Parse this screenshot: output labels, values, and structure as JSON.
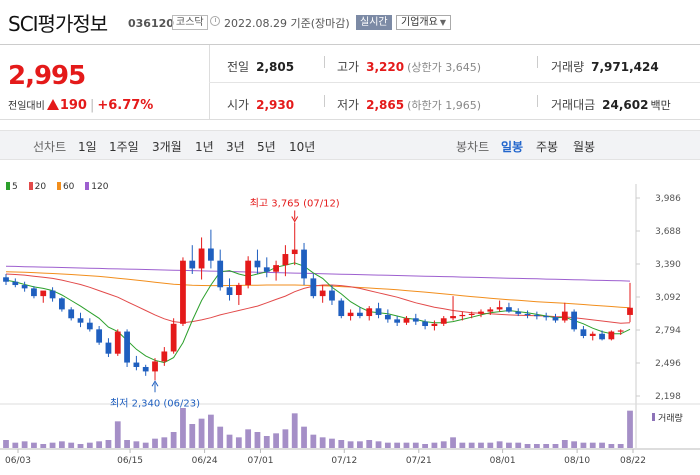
{
  "header": {
    "name": "SCI평가정보",
    "code": "036120",
    "market": "코스닥",
    "timestamp": "2022.08.29 기준(장마감)",
    "realtime_label": "실시간",
    "info_button": "기업개요"
  },
  "summary": {
    "price": "2,995",
    "change_label": "전일대비",
    "change": "190",
    "change_pct": "+6.77%",
    "prev_close_label": "전일",
    "prev_close": "2,805",
    "open_label": "시가",
    "open": "2,930",
    "high_label": "고가",
    "high": "3,220",
    "upper_limit": "(상한가 3,645)",
    "low_label": "저가",
    "low": "2,865",
    "lower_limit": "(하한가 1,965)",
    "volume_label": "거래량",
    "volume": "7,971,424",
    "amount_label": "거래대금",
    "amount": "24,602",
    "amount_unit": "백만"
  },
  "toolbar": {
    "line_chart_label": "선차트",
    "periods": [
      "1일",
      "1주일",
      "3개월",
      "1년",
      "3년",
      "5년",
      "10년"
    ],
    "candle_chart_label": "봉차트",
    "candles": [
      "일봉",
      "주봉",
      "월봉"
    ],
    "active_candle": "일봉"
  },
  "chart_data": {
    "type": "candlestick",
    "legend": [
      {
        "name": "5",
        "color": "#2ca02c"
      },
      {
        "name": "20",
        "color": "#e24a4a"
      },
      {
        "name": "60",
        "color": "#f28e1c"
      },
      {
        "name": "120",
        "color": "#9d5fcf"
      }
    ],
    "ylim": [
      2198,
      3986
    ],
    "yticks": [
      "3,986",
      "3,688",
      "3,390",
      "3,092",
      "2,794",
      "2,496",
      "2,198"
    ],
    "xticks": [
      "06/03",
      "06/15",
      "06/24",
      "07/01",
      "07/12",
      "07/21",
      "08/01",
      "08/10",
      "08/22"
    ],
    "high_annotation": "최고 3,765 (07/12)",
    "low_annotation": "최저 2,340 (06/23)",
    "volume_label": "거래량",
    "ohlc": [
      [
        3270,
        3300,
        3200,
        3230
      ],
      [
        3230,
        3260,
        3180,
        3200
      ],
      [
        3200,
        3230,
        3140,
        3170
      ],
      [
        3170,
        3190,
        3080,
        3100
      ],
      [
        3100,
        3140,
        3040,
        3150
      ],
      [
        3150,
        3180,
        3050,
        3080
      ],
      [
        3080,
        3090,
        2960,
        2980
      ],
      [
        2980,
        3000,
        2880,
        2900
      ],
      [
        2900,
        2950,
        2820,
        2860
      ],
      [
        2860,
        2900,
        2780,
        2800
      ],
      [
        2800,
        2830,
        2660,
        2680
      ],
      [
        2680,
        2720,
        2550,
        2580
      ],
      [
        2580,
        2800,
        2560,
        2780
      ],
      [
        2780,
        2800,
        2460,
        2500
      ],
      [
        2500,
        2560,
        2430,
        2460
      ],
      [
        2460,
        2480,
        2380,
        2420
      ],
      [
        2420,
        2540,
        2340,
        2510
      ],
      [
        2510,
        2640,
        2470,
        2600
      ],
      [
        2600,
        2900,
        2580,
        2850
      ],
      [
        2850,
        3450,
        2830,
        3420
      ],
      [
        3420,
        3560,
        3300,
        3350
      ],
      [
        3350,
        3630,
        3250,
        3530
      ],
      [
        3530,
        3700,
        3350,
        3420
      ],
      [
        3420,
        3520,
        3150,
        3180
      ],
      [
        3180,
        3260,
        3060,
        3110
      ],
      [
        3110,
        3220,
        3020,
        3200
      ],
      [
        3200,
        3460,
        3170,
        3420
      ],
      [
        3420,
        3520,
        3300,
        3360
      ],
      [
        3360,
        3450,
        3270,
        3320
      ],
      [
        3320,
        3420,
        3240,
        3380
      ],
      [
        3380,
        3560,
        3280,
        3480
      ],
      [
        3480,
        3765,
        3380,
        3520
      ],
      [
        3520,
        3580,
        3200,
        3260
      ],
      [
        3260,
        3300,
        3080,
        3100
      ],
      [
        3100,
        3200,
        3040,
        3150
      ],
      [
        3150,
        3200,
        3020,
        3060
      ],
      [
        3060,
        3080,
        2900,
        2920
      ],
      [
        2920,
        2980,
        2880,
        2950
      ],
      [
        2950,
        3000,
        2900,
        2920
      ],
      [
        2920,
        3010,
        2880,
        2990
      ],
      [
        2990,
        3040,
        2900,
        2930
      ],
      [
        2930,
        2980,
        2860,
        2890
      ],
      [
        2890,
        2920,
        2830,
        2860
      ],
      [
        2860,
        2920,
        2840,
        2900
      ],
      [
        2900,
        2940,
        2840,
        2870
      ],
      [
        2870,
        2890,
        2800,
        2830
      ],
      [
        2830,
        2880,
        2790,
        2850
      ],
      [
        2850,
        2920,
        2830,
        2900
      ],
      [
        2900,
        3100,
        2880,
        2920
      ],
      [
        2920,
        2960,
        2880,
        2930
      ],
      [
        2930,
        2960,
        2900,
        2940
      ],
      [
        2940,
        2980,
        2910,
        2960
      ],
      [
        2960,
        3000,
        2930,
        2980
      ],
      [
        2980,
        3060,
        2960,
        3000
      ],
      [
        3000,
        3040,
        2950,
        2960
      ],
      [
        2960,
        2990,
        2920,
        2940
      ],
      [
        2940,
        2970,
        2900,
        2930
      ],
      [
        2930,
        2960,
        2890,
        2920
      ],
      [
        2920,
        2950,
        2880,
        2910
      ],
      [
        2910,
        2940,
        2860,
        2880
      ],
      [
        2880,
        3040,
        2860,
        2960
      ],
      [
        2960,
        2980,
        2780,
        2800
      ],
      [
        2800,
        2830,
        2720,
        2740
      ],
      [
        2740,
        2780,
        2700,
        2760
      ],
      [
        2760,
        2790,
        2700,
        2710
      ],
      [
        2710,
        2790,
        2700,
        2780
      ],
      [
        2780,
        2800,
        2750,
        2790
      ],
      [
        2930,
        3220,
        2865,
        2995
      ]
    ],
    "ma5": [
      3245,
      3228,
      3205,
      3183,
      3170,
      3150,
      3110,
      3060,
      3010,
      2955,
      2900,
      2820,
      2780,
      2700,
      2620,
      2560,
      2520,
      2500,
      2545,
      2680,
      2880,
      3060,
      3200,
      3320,
      3330,
      3300,
      3280,
      3300,
      3320,
      3360,
      3380,
      3400,
      3370,
      3310,
      3260,
      3180,
      3120,
      3050,
      3000,
      2960,
      2950,
      2940,
      2920,
      2900,
      2890,
      2870,
      2860,
      2860,
      2870,
      2890,
      2910,
      2930,
      2950,
      2960,
      2970,
      2960,
      2950,
      2935,
      2920,
      2905,
      2910,
      2880,
      2850,
      2810,
      2780,
      2760,
      2760,
      2800
    ],
    "ma20": [
      3300,
      3295,
      3290,
      3280,
      3270,
      3260,
      3245,
      3225,
      3205,
      3180,
      3150,
      3120,
      3090,
      3050,
      3010,
      2970,
      2930,
      2895,
      2870,
      2860,
      2870,
      2885,
      2905,
      2930,
      2950,
      2970,
      2990,
      3010,
      3040,
      3070,
      3100,
      3140,
      3170,
      3190,
      3200,
      3200,
      3195,
      3185,
      3170,
      3150,
      3130,
      3110,
      3090,
      3065,
      3040,
      3020,
      3000,
      2985,
      2970,
      2960,
      2950,
      2945,
      2940,
      2935,
      2930,
      2928,
      2925,
      2922,
      2920,
      2915,
      2912,
      2905,
      2895,
      2885,
      2875,
      2865,
      2855,
      2860
    ],
    "ma60": [
      3320,
      3318,
      3315,
      3312,
      3308,
      3304,
      3300,
      3295,
      3290,
      3284,
      3278,
      3270,
      3262,
      3254,
      3245,
      3236,
      3226,
      3216,
      3208,
      3202,
      3198,
      3196,
      3195,
      3195,
      3196,
      3197,
      3198,
      3199,
      3200,
      3200,
      3200,
      3200,
      3198,
      3196,
      3193,
      3190,
      3186,
      3182,
      3178,
      3173,
      3168,
      3163,
      3157,
      3150,
      3143,
      3136,
      3128,
      3120,
      3112,
      3104,
      3096,
      3088,
      3081,
      3074,
      3068,
      3062,
      3056,
      3050,
      3045,
      3040,
      3035,
      3030,
      3024,
      3018,
      3012,
      3006,
      3000,
      2995
    ],
    "ma120": [
      3370,
      3368,
      3366,
      3364,
      3362,
      3360,
      3358,
      3356,
      3354,
      3352,
      3350,
      3348,
      3346,
      3344,
      3342,
      3340,
      3338,
      3336,
      3334,
      3332,
      3330,
      3328,
      3326,
      3324,
      3322,
      3320,
      3318,
      3316,
      3314,
      3312,
      3310,
      3308,
      3306,
      3304,
      3302,
      3300,
      3298,
      3296,
      3294,
      3292,
      3290,
      3288,
      3286,
      3284,
      3282,
      3280,
      3278,
      3276,
      3274,
      3272,
      3270,
      3268,
      3266,
      3264,
      3262,
      3260,
      3258,
      3256,
      3254,
      3252,
      3250,
      3248,
      3246,
      3244,
      3242,
      3240,
      3238,
      3236
    ],
    "volume": [
      6,
      4,
      5,
      4,
      3,
      4,
      5,
      4,
      3,
      4,
      5,
      6,
      20,
      6,
      5,
      4,
      7,
      8,
      12,
      30,
      18,
      22,
      25,
      16,
      10,
      8,
      14,
      12,
      9,
      11,
      14,
      26,
      16,
      10,
      8,
      7,
      6,
      5,
      5,
      6,
      5,
      4,
      4,
      4,
      4,
      3,
      4,
      5,
      8,
      4,
      4,
      4,
      4,
      5,
      4,
      4,
      3,
      3,
      3,
      3,
      6,
      5,
      4,
      4,
      4,
      3,
      3,
      28
    ]
  },
  "colors": {
    "up": "#e41a1a",
    "down": "#1f5fbf",
    "accent": "#2266cc"
  }
}
